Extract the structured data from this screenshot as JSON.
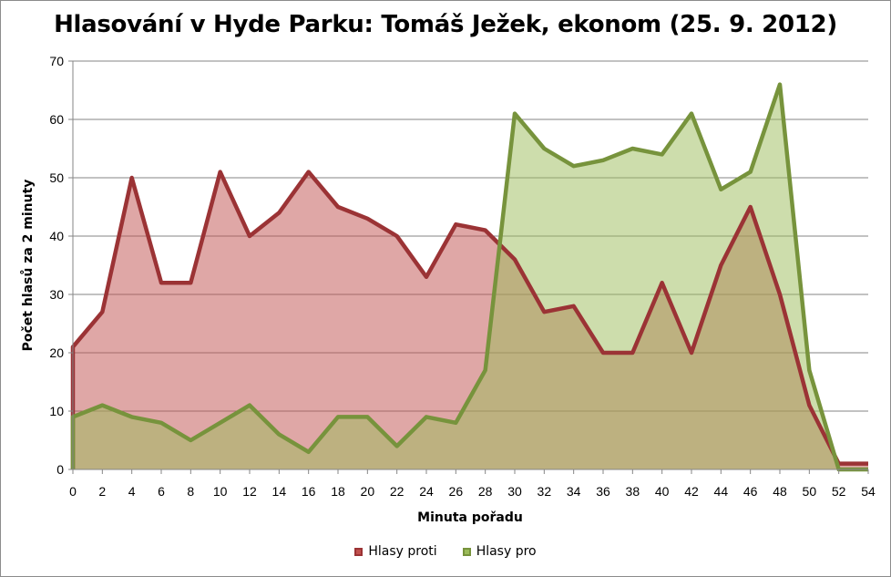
{
  "chart_data": {
    "type": "area",
    "title": "Hlasování v Hyde Parku: Tomáš Ježek, ekonom (25. 9. 2012)",
    "xlabel": "Minuta pořadu",
    "ylabel": "Počet hlasů za 2 minuty",
    "x": [
      0,
      2,
      4,
      6,
      8,
      10,
      12,
      14,
      16,
      18,
      20,
      22,
      24,
      26,
      28,
      30,
      32,
      34,
      36,
      38,
      40,
      42,
      44,
      46,
      48,
      50,
      52,
      54
    ],
    "xticks": [
      0,
      2,
      4,
      6,
      8,
      10,
      12,
      14,
      16,
      18,
      20,
      22,
      24,
      26,
      28,
      30,
      32,
      34,
      36,
      38,
      40,
      42,
      44,
      46,
      48,
      50,
      52,
      54
    ],
    "yticks": [
      0,
      10,
      20,
      30,
      40,
      50,
      60,
      70
    ],
    "xlim": [
      0,
      54
    ],
    "ylim": [
      0,
      70
    ],
    "grid": "horizontal",
    "legend": "bottom",
    "series": [
      {
        "name": "Hlasy proti",
        "values": [
          21,
          27,
          50,
          32,
          32,
          51,
          40,
          44,
          51,
          45,
          43,
          40,
          33,
          42,
          41,
          36,
          27,
          28,
          20,
          20,
          32,
          20,
          35,
          45,
          30,
          11,
          1,
          1
        ],
        "line_color": "#9b3335",
        "fill_color": "#c0504d"
      },
      {
        "name": "Hlasy pro",
        "values": [
          9,
          11,
          9,
          8,
          5,
          8,
          11,
          6,
          3,
          9,
          9,
          4,
          9,
          8,
          17,
          61,
          55,
          52,
          53,
          55,
          54,
          61,
          48,
          51,
          66,
          17,
          0,
          0
        ],
        "line_color": "#77933c",
        "fill_color": "#9bbb59"
      }
    ]
  }
}
